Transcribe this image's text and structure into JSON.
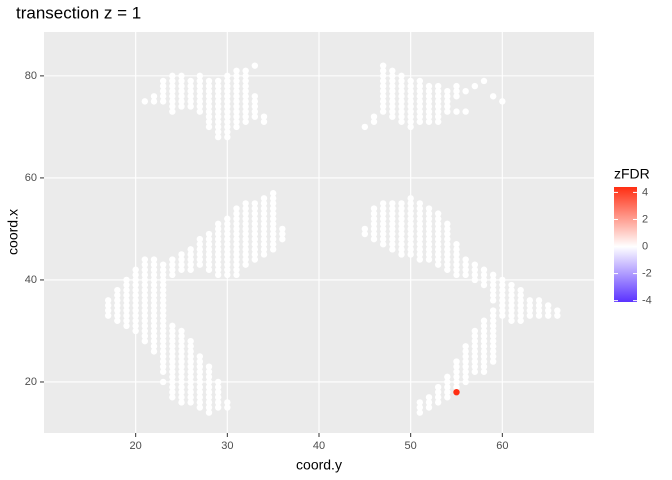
{
  "chart_data": {
    "type": "scatter",
    "title": "transection z = 1",
    "x_label": "coord.y",
    "y_label": "coord.x",
    "xlim": [
      10,
      70
    ],
    "ylim": [
      10,
      88.6
    ],
    "xticks": [
      20,
      30,
      40,
      50,
      60
    ],
    "yticks": [
      20,
      40,
      60,
      80
    ],
    "grid": true,
    "legend": {
      "title": "zFDR",
      "position": "right",
      "zlim": [
        -4.1,
        4.4
      ],
      "zticks": [
        4,
        2,
        0,
        -2,
        -4
      ],
      "colors": {
        "low": "#5a32ff",
        "mid": "#ffffff",
        "high": "#ff2e12"
      }
    },
    "columns": [
      {
        "y": 17,
        "x": [
          33,
          34,
          35,
          36
        ],
        "z": 0
      },
      {
        "y": 18,
        "x": [
          32,
          33,
          34,
          35,
          36,
          37,
          38
        ],
        "z": 0
      },
      {
        "y": 19,
        "x": [
          31,
          32,
          33,
          34,
          35,
          36,
          37,
          38,
          39,
          40
        ],
        "z": 0
      },
      {
        "y": 20,
        "x": [
          30,
          31,
          32,
          33,
          34,
          35,
          36,
          37,
          38,
          39,
          40,
          41,
          42
        ],
        "z": 0
      },
      {
        "y": 21,
        "x": [
          28,
          29,
          30,
          31,
          32,
          33,
          34,
          35,
          36,
          37,
          38,
          39,
          40,
          41,
          42,
          43,
          44,
          75
        ],
        "z": 0
      },
      {
        "y": 22,
        "x": [
          26,
          27,
          28,
          29,
          30,
          31,
          32,
          33,
          34,
          35,
          36,
          37,
          38,
          39,
          40,
          41,
          42,
          43,
          44,
          75,
          76
        ],
        "z": 0
      },
      {
        "y": 23,
        "x": [
          20,
          22,
          23,
          24,
          25,
          26,
          27,
          28,
          29,
          30,
          31,
          32,
          33,
          34,
          35,
          36,
          37,
          38,
          39,
          40,
          41,
          42,
          43,
          75,
          76,
          77,
          78,
          79
        ],
        "z": 0
      },
      {
        "y": 24,
        "x": [
          17,
          18,
          19,
          20,
          21,
          22,
          23,
          24,
          25,
          26,
          27,
          28,
          29,
          30,
          31,
          41,
          42,
          43,
          44,
          73,
          74,
          75,
          76,
          77,
          78,
          79,
          80
        ],
        "z": 0
      },
      {
        "y": 25,
        "x": [
          16,
          17,
          18,
          19,
          20,
          21,
          22,
          23,
          24,
          25,
          26,
          27,
          28,
          29,
          30,
          42,
          43,
          44,
          45,
          74,
          75,
          76,
          77,
          78,
          79,
          80
        ],
        "z": 0
      },
      {
        "y": 26,
        "x": [
          16,
          17,
          18,
          19,
          20,
          21,
          22,
          23,
          24,
          25,
          26,
          27,
          28,
          42,
          43,
          44,
          45,
          46,
          74,
          75,
          76,
          77,
          78,
          79
        ],
        "z": 0
      },
      {
        "y": 27,
        "x": [
          15,
          16,
          17,
          18,
          19,
          20,
          21,
          22,
          23,
          24,
          25,
          43,
          44,
          45,
          46,
          47,
          48,
          73,
          74,
          75,
          76,
          77,
          78,
          79,
          80
        ],
        "z": 0
      },
      {
        "y": 28,
        "x": [
          14,
          15,
          16,
          17,
          18,
          19,
          20,
          21,
          22,
          23,
          42,
          43,
          44,
          45,
          46,
          47,
          48,
          49,
          70,
          71,
          72,
          73,
          74,
          75,
          76,
          77,
          78,
          79
        ],
        "z": 0
      },
      {
        "y": 29,
        "x": [
          15,
          16,
          17,
          18,
          19,
          20,
          41,
          42,
          43,
          44,
          45,
          46,
          47,
          48,
          49,
          50,
          51,
          68,
          69,
          70,
          71,
          72,
          73,
          74,
          75,
          76,
          77,
          78,
          79
        ],
        "z": 0
      },
      {
        "y": 30,
        "x": [
          15,
          16,
          41,
          42,
          43,
          44,
          45,
          46,
          47,
          48,
          49,
          50,
          51,
          52,
          68,
          69,
          70,
          71,
          72,
          73,
          74,
          75,
          76,
          77,
          78,
          79,
          80
        ],
        "z": 0
      },
      {
        "y": 31,
        "x": [
          41,
          42,
          43,
          44,
          45,
          46,
          47,
          48,
          49,
          50,
          51,
          52,
          53,
          54,
          70,
          71,
          72,
          73,
          74,
          75,
          76,
          77,
          78,
          79,
          80,
          81
        ],
        "z": 0
      },
      {
        "y": 32,
        "x": [
          43,
          44,
          45,
          46,
          47,
          48,
          49,
          50,
          51,
          52,
          53,
          54,
          55,
          71,
          72,
          73,
          74,
          75,
          76,
          77,
          78,
          79,
          80,
          81
        ],
        "z": 0
      },
      {
        "y": 33,
        "x": [
          44,
          45,
          46,
          47,
          48,
          49,
          50,
          51,
          52,
          53,
          54,
          55,
          72,
          73,
          74,
          75,
          76,
          82
        ],
        "z": 0
      },
      {
        "y": 34,
        "x": [
          45,
          46,
          47,
          48,
          49,
          50,
          51,
          52,
          53,
          54,
          55,
          56,
          71,
          72
        ],
        "z": 0
      },
      {
        "y": 35,
        "x": [
          46,
          47,
          48,
          49,
          50,
          51,
          52,
          53,
          54,
          55,
          56,
          57
        ],
        "z": 0
      },
      {
        "y": 36,
        "x": [
          48,
          49,
          50
        ],
        "z": 0
      },
      {
        "y": 45,
        "x": [
          49,
          50,
          70
        ],
        "z": 0
      },
      {
        "y": 46,
        "x": [
          48,
          49,
          50,
          51,
          52,
          53,
          54,
          71,
          72
        ],
        "z": 0
      },
      {
        "y": 47,
        "x": [
          47,
          48,
          49,
          50,
          51,
          52,
          53,
          54,
          55,
          73,
          74,
          75,
          76,
          77,
          78,
          79,
          80,
          81,
          82
        ],
        "z": 0
      },
      {
        "y": 48,
        "x": [
          46,
          47,
          48,
          49,
          50,
          51,
          52,
          53,
          54,
          55,
          72,
          73,
          74,
          75,
          76,
          77,
          78,
          79,
          80,
          81
        ],
        "z": 0
      },
      {
        "y": 49,
        "x": [
          45,
          46,
          47,
          48,
          49,
          50,
          51,
          52,
          53,
          54,
          55,
          71,
          72,
          73,
          74,
          75,
          76,
          77,
          78,
          79,
          80
        ],
        "z": 0
      },
      {
        "y": 50,
        "x": [
          45,
          46,
          47,
          48,
          49,
          50,
          51,
          52,
          53,
          54,
          55,
          56,
          70,
          71,
          72,
          73,
          74,
          75,
          76,
          77,
          78,
          79
        ],
        "z": 0
      },
      {
        "y": 51,
        "x": [
          14,
          15,
          16,
          44,
          45,
          46,
          47,
          48,
          49,
          50,
          51,
          52,
          53,
          54,
          55,
          71,
          72,
          73,
          74,
          75,
          76,
          77,
          78,
          79
        ],
        "z": 0
      },
      {
        "y": 52,
        "x": [
          15,
          16,
          17,
          44,
          45,
          46,
          47,
          48,
          49,
          50,
          51,
          52,
          53,
          54,
          71,
          72,
          73,
          74,
          75,
          76,
          77,
          78
        ],
        "z": 0
      },
      {
        "y": 53,
        "x": [
          16,
          17,
          18,
          19,
          43,
          44,
          45,
          46,
          47,
          48,
          49,
          50,
          51,
          52,
          53,
          71,
          72,
          73,
          74,
          75,
          76,
          77,
          78
        ],
        "z": 0
      },
      {
        "y": 54,
        "x": [
          17,
          18,
          19,
          20,
          21,
          42,
          43,
          44,
          45,
          46,
          47,
          48,
          49,
          50,
          51,
          73,
          74,
          75,
          76,
          77
        ],
        "z": 0
      },
      {
        "y": 55,
        "x": [
          19,
          20,
          21,
          22,
          23,
          24,
          41,
          42,
          43,
          44,
          45,
          46,
          47,
          73,
          76,
          77,
          78
        ],
        "z": 0
      },
      {
        "y": 56,
        "x": [
          20,
          21,
          22,
          23,
          24,
          25,
          26,
          27,
          41,
          42,
          43,
          44,
          73,
          77
        ],
        "z": 0
      },
      {
        "y": 57,
        "x": [
          22,
          23,
          24,
          25,
          26,
          27,
          28,
          29,
          30,
          40,
          41,
          42,
          43,
          78
        ],
        "z": 0
      },
      {
        "y": 58,
        "x": [
          22,
          23,
          24,
          25,
          26,
          27,
          28,
          29,
          30,
          31,
          32,
          39,
          40,
          41,
          42,
          79
        ],
        "z": 0
      },
      {
        "y": 59,
        "x": [
          24,
          25,
          26,
          27,
          28,
          29,
          30,
          31,
          32,
          33,
          34,
          36,
          37,
          38,
          39,
          40,
          41,
          76
        ],
        "z": 0
      },
      {
        "y": 60,
        "x": [
          33,
          34,
          35,
          36,
          37,
          38,
          39,
          40,
          75
        ],
        "z": 0
      },
      {
        "y": 61,
        "x": [
          32,
          33,
          34,
          35,
          36,
          37,
          38,
          39
        ],
        "z": 0
      },
      {
        "y": 62,
        "x": [
          32,
          33,
          34,
          35,
          36,
          37,
          38
        ],
        "z": 0
      },
      {
        "y": 63,
        "x": [
          33,
          34,
          35,
          36
        ],
        "z": 0
      },
      {
        "y": 64,
        "x": [
          33,
          34,
          35,
          36
        ],
        "z": 0
      },
      {
        "y": 65,
        "x": [
          33,
          34,
          35
        ],
        "z": 0
      },
      {
        "y": 66,
        "x": [
          33,
          34
        ],
        "z": 0
      },
      {
        "y": 55,
        "x": [
          18
        ],
        "z": 4.4
      }
    ]
  }
}
